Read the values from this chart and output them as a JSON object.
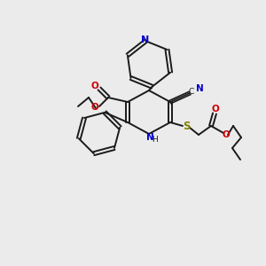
{
  "background_color": "#ebebeb",
  "figsize": [
    3.0,
    3.0
  ],
  "dpi": 100,
  "colors": {
    "C": "#1a1a1a",
    "N": "#0000cc",
    "O": "#cc0000",
    "S": "#808000",
    "bond": "#1a1a1a"
  }
}
